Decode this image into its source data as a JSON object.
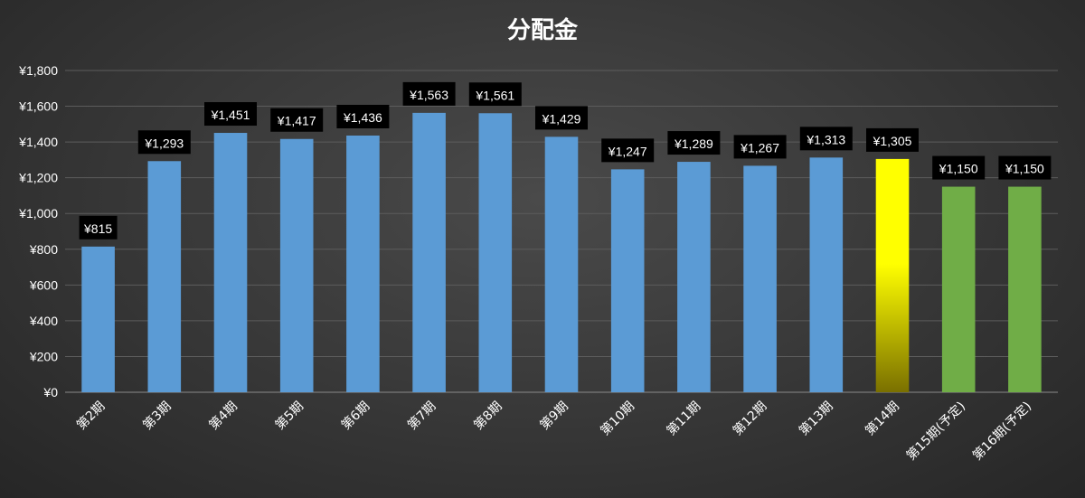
{
  "chart_data": {
    "type": "bar",
    "title": "分配金",
    "categories": [
      "第2期",
      "第3期",
      "第4期",
      "第5期",
      "第6期",
      "第7期",
      "第8期",
      "第9期",
      "第10期",
      "第11期",
      "第12期",
      "第13期",
      "第14期",
      "第15期(予定)",
      "第16期(予定)"
    ],
    "values": [
      815,
      1293,
      1451,
      1417,
      1436,
      1563,
      1561,
      1429,
      1247,
      1289,
      1267,
      1313,
      1305,
      1150,
      1150
    ],
    "data_labels": [
      "¥815",
      "¥1,293",
      "¥1,451",
      "¥1,417",
      "¥1,436",
      "¥1,563",
      "¥1,561",
      "¥1,429",
      "¥1,247",
      "¥1,289",
      "¥1,267",
      "¥1,313",
      "¥1,305",
      "¥1,150",
      "¥1,150"
    ],
    "bar_colors": [
      "#5b9bd5",
      "#5b9bd5",
      "#5b9bd5",
      "#5b9bd5",
      "#5b9bd5",
      "#5b9bd5",
      "#5b9bd5",
      "#5b9bd5",
      "#5b9bd5",
      "#5b9bd5",
      "#5b9bd5",
      "#5b9bd5",
      "highlight",
      "#70ad47",
      "#70ad47"
    ],
    "highlight_gradient": [
      "#ffff00",
      "#7a7000"
    ],
    "ylim": [
      0,
      1800
    ],
    "yticks": [
      0,
      200,
      400,
      600,
      800,
      1000,
      1200,
      1400,
      1600,
      1800
    ],
    "ytick_labels": [
      "¥0",
      "¥200",
      "¥400",
      "¥600",
      "¥800",
      "¥1,000",
      "¥1,200",
      "¥1,400",
      "¥1,600",
      "¥1,800"
    ],
    "xlabel": "",
    "ylabel": "",
    "grid": true,
    "legend": "none"
  }
}
